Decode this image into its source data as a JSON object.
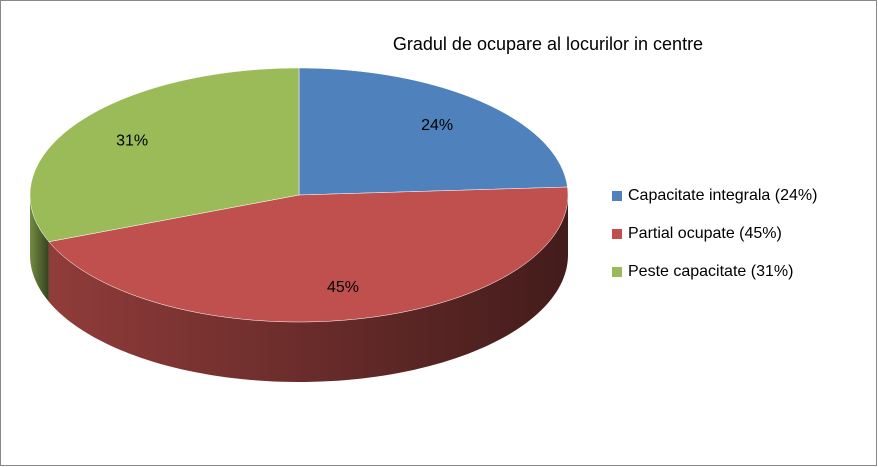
{
  "chart_data": {
    "type": "pie",
    "title": "Gradul de ocupare al locurilor in centre",
    "categories": [
      "Capacitate integrala (24%)",
      "Partial ocupate (45%)",
      "Peste capacitate  (31%)"
    ],
    "values": [
      24,
      45,
      31
    ],
    "value_labels": [
      "24%",
      "45%",
      "31%"
    ],
    "colors": [
      "#4f81bd",
      "#c0504d",
      "#9bbb59"
    ],
    "legend": "right"
  }
}
